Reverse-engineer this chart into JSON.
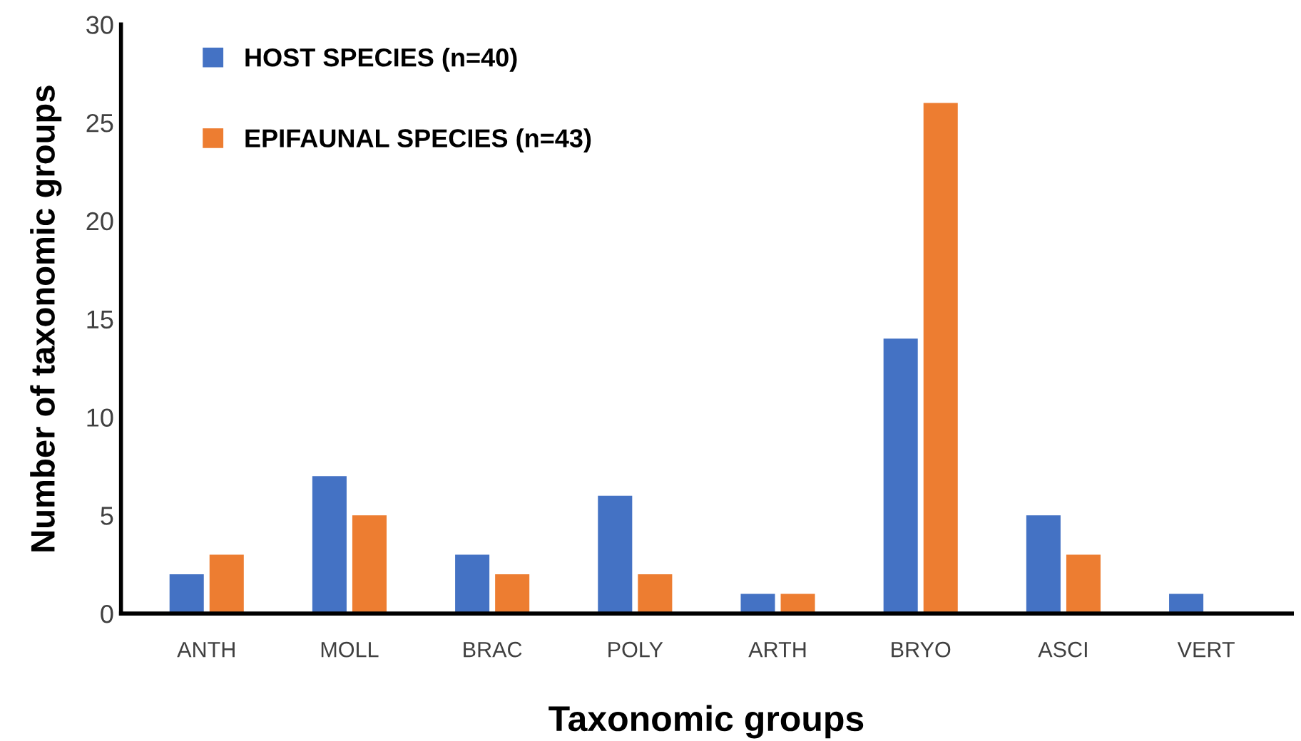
{
  "chart_data": {
    "type": "bar",
    "xlabel": "Taxonomic groups",
    "ylabel": "Number of taxonomic groups",
    "categories": [
      "ANTH",
      "MOLL",
      "BRAC",
      "POLY",
      "ARTH",
      "BRYO",
      "ASCI",
      "VERT"
    ],
    "series": [
      {
        "name": "HOST SPECIES (n=40)",
        "color": "#4472c4",
        "values": [
          2,
          7,
          3,
          6,
          1,
          14,
          5,
          1
        ]
      },
      {
        "name": "EPIFAUNAL SPECIES (n=43)",
        "color": "#ed7d31",
        "values": [
          3,
          5,
          2,
          2,
          1,
          26,
          3,
          0
        ]
      }
    ],
    "ylim": [
      0,
      30
    ],
    "yticks": [
      0,
      5,
      10,
      15,
      20,
      25,
      30
    ],
    "grid": false,
    "legend": "top left"
  }
}
